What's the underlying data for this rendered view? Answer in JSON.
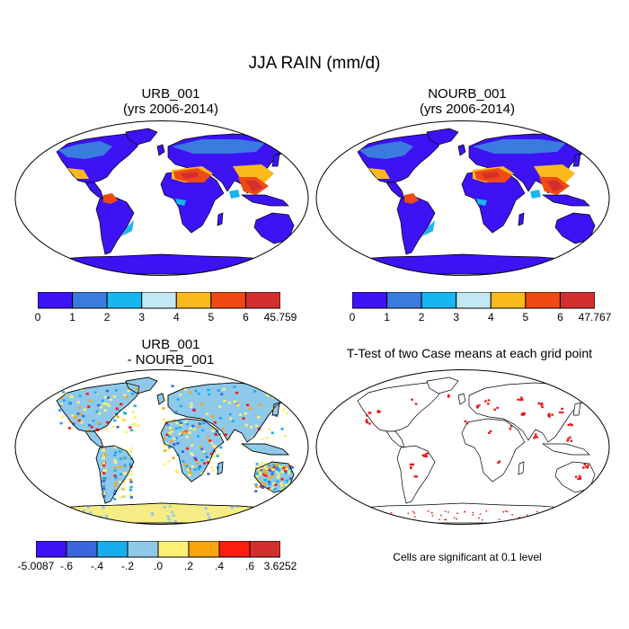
{
  "title": "JJA RAIN (mm/d)",
  "panels": [
    {
      "title_line1": "URB_001",
      "title_line2": "(yrs 2006-2014)",
      "fill": "precip"
    },
    {
      "title_line1": "NOURB_001",
      "title_line2": "(yrs 2006-2014)",
      "fill": "precip"
    },
    {
      "title_line1": "URB_001",
      "title_line2": "- NOURB_001",
      "fill": "diff"
    },
    {
      "title_line1": "T-Test of two Case means at each grid point",
      "title_line2": "",
      "fill": "ttest"
    }
  ],
  "colorbars": [
    {
      "colors": [
        "#3d12f5",
        "#3a7be0",
        "#16b6f0",
        "#c2e8f4",
        "#fbba1c",
        "#f04a12",
        "#d42f2f"
      ],
      "labels": [
        "0",
        "1",
        "2",
        "3",
        "4",
        "5",
        "6",
        "45.759"
      ]
    },
    {
      "colors": [
        "#3d12f5",
        "#3a7be0",
        "#16b6f0",
        "#c2e8f4",
        "#fbba1c",
        "#f04a12",
        "#d42f2f"
      ],
      "labels": [
        "0",
        "1",
        "2",
        "3",
        "4",
        "5",
        "6",
        "47.767"
      ]
    },
    {
      "colors": [
        "#3d12f5",
        "#3a67de",
        "#17aef0",
        "#8fc9ea",
        "#fbef74",
        "#fba40f",
        "#fb1d0e",
        "#d42f2f"
      ],
      "labels": [
        "-5.0087",
        "-.6",
        "-.4",
        "-.2",
        ".0",
        ".2",
        ".4",
        ".6",
        "3.6252"
      ]
    }
  ],
  "significance_note": "Cells are significant at 0.1 level",
  "chart_data": [
    {
      "type": "heatmap",
      "title": "URB_001 (yrs 2006-2014)",
      "variable": "JJA RAIN (mm/d)",
      "levels": [
        0,
        1,
        2,
        3,
        4,
        5,
        6
      ],
      "max": 45.759
    },
    {
      "type": "heatmap",
      "title": "NOURB_001 (yrs 2006-2014)",
      "variable": "JJA RAIN (mm/d)",
      "levels": [
        0,
        1,
        2,
        3,
        4,
        5,
        6
      ],
      "max": 47.767
    },
    {
      "type": "heatmap",
      "title": "URB_001 - NOURB_001",
      "variable": "JJA RAIN difference (mm/d)",
      "levels": [
        -0.6,
        -0.4,
        -0.2,
        0.0,
        0.2,
        0.4,
        0.6
      ],
      "min": -5.0087,
      "max": 3.6252
    },
    {
      "type": "heatmap",
      "title": "T-Test of two Case means at each grid point",
      "significance_level": 0.1
    }
  ]
}
